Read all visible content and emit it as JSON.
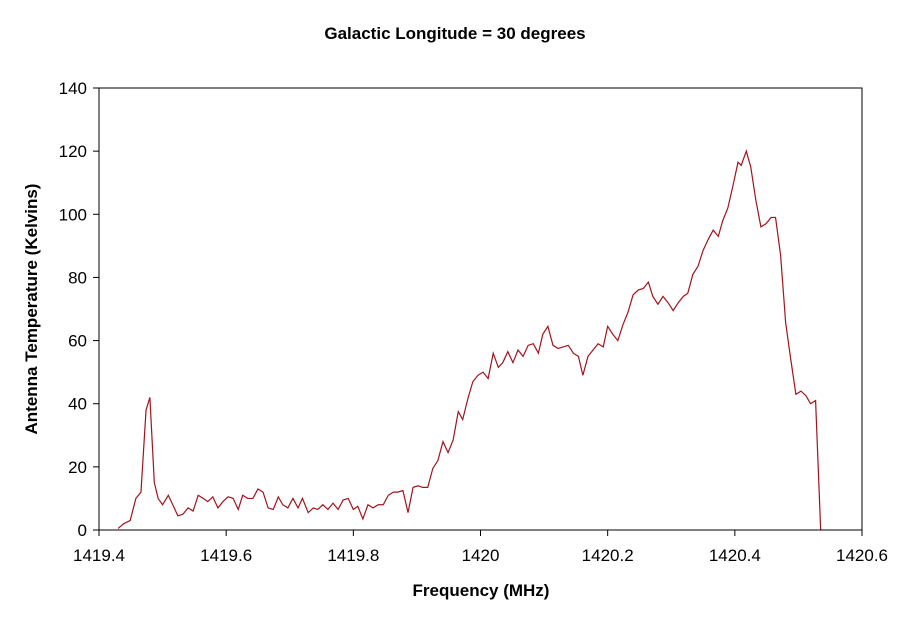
{
  "chart_data": {
    "type": "line",
    "title": "Galactic Longitude = 30 degrees",
    "x_label": "Frequency (MHz)",
    "y_label": "Antenna Temperature (Kelvins)",
    "color": "#a0141e",
    "xlim": [
      1419.4,
      1420.6
    ],
    "xticks": [
      1419.4,
      1419.6,
      1419.8,
      1420,
      1420.2,
      1420.4,
      1420.6
    ],
    "ylim": [
      0,
      140
    ],
    "yticks": [
      0,
      20,
      40,
      60,
      80,
      100,
      120,
      140
    ],
    "x": [
      1419.43,
      1419.439,
      1419.449,
      1419.458,
      1419.466,
      1419.474,
      1419.48,
      1419.487,
      1419.493,
      1419.5,
      1419.509,
      1419.516,
      1419.524,
      1419.532,
      1419.54,
      1419.548,
      1419.556,
      1419.564,
      1419.571,
      1419.579,
      1419.587,
      1419.595,
      1419.603,
      1419.611,
      1419.619,
      1419.626,
      1419.634,
      1419.642,
      1419.65,
      1419.658,
      1419.666,
      1419.674,
      1419.682,
      1419.689,
      1419.697,
      1419.705,
      1419.713,
      1419.72,
      1419.729,
      1419.737,
      1419.744,
      1419.752,
      1419.76,
      1419.768,
      1419.776,
      1419.784,
      1419.792,
      1419.8,
      1419.807,
      1419.815,
      1419.823,
      1419.831,
      1419.839,
      1419.847,
      1419.855,
      1419.863,
      1419.87,
      1419.878,
      1419.886,
      1419.894,
      1419.902,
      1419.909,
      1419.917,
      1419.925,
      1419.933,
      1419.941,
      1419.949,
      1419.957,
      1419.965,
      1419.972,
      1419.98,
      1419.988,
      1419.996,
      1420.004,
      1420.012,
      1420.02,
      1420.028,
      1420.035,
      1420.043,
      1420.051,
      1420.059,
      1420.067,
      1420.075,
      1420.083,
      1420.091,
      1420.098,
      1420.106,
      1420.114,
      1420.122,
      1420.13,
      1420.138,
      1420.146,
      1420.154,
      1420.161,
      1420.169,
      1420.177,
      1420.185,
      1420.193,
      1420.2,
      1420.208,
      1420.216,
      1420.224,
      1420.232,
      1420.24,
      1420.248,
      1420.256,
      1420.264,
      1420.271,
      1420.279,
      1420.287,
      1420.295,
      1420.303,
      1420.311,
      1420.319,
      1420.326,
      1420.334,
      1420.342,
      1420.35,
      1420.358,
      1420.366,
      1420.374,
      1420.381,
      1420.389,
      1420.397,
      1420.405,
      1420.41,
      1420.418,
      1420.425,
      1420.433,
      1420.441,
      1420.449,
      1420.457,
      1420.464,
      1420.472,
      1420.48,
      1420.488,
      1420.496,
      1420.504,
      1420.512,
      1420.519,
      1420.527,
      1420.535
    ],
    "values": [
      0.5,
      2,
      3,
      10,
      12,
      38,
      42,
      15,
      10,
      8,
      11,
      8,
      4.5,
      5,
      7,
      6,
      11,
      10,
      9,
      10.5,
      7,
      9,
      10.5,
      10,
      6.5,
      11,
      10,
      10,
      13,
      12,
      7,
      6.5,
      10.5,
      8,
      7,
      10,
      7,
      10,
      5.5,
      7,
      6.5,
      8,
      6.5,
      8.5,
      6.5,
      9.5,
      10,
      6.5,
      7.5,
      3.5,
      8,
      7,
      8,
      8,
      11,
      12,
      12,
      12.5,
      5.5,
      13.5,
      14,
      13.5,
      13.5,
      19.5,
      22,
      28,
      24.5,
      28.5,
      37.5,
      35,
      41.5,
      47,
      49,
      50,
      48,
      56,
      51.5,
      53,
      56.5,
      53,
      57,
      55,
      58.5,
      59,
      56,
      62,
      64.5,
      58.5,
      57.5,
      58,
      58.5,
      56,
      55,
      49,
      55,
      57,
      59,
      58,
      64.5,
      62,
      60,
      65,
      69,
      74.5,
      76,
      76.5,
      78.5,
      74,
      71.5,
      74,
      72,
      69.5,
      72,
      74,
      75,
      81,
      83.5,
      88.5,
      92,
      95,
      93,
      98,
      102,
      109,
      116.5,
      115.5,
      120,
      115,
      104.5,
      96,
      97,
      99,
      99,
      87,
      65.5,
      54,
      43,
      44,
      42.5,
      40,
      41,
      0
    ]
  }
}
